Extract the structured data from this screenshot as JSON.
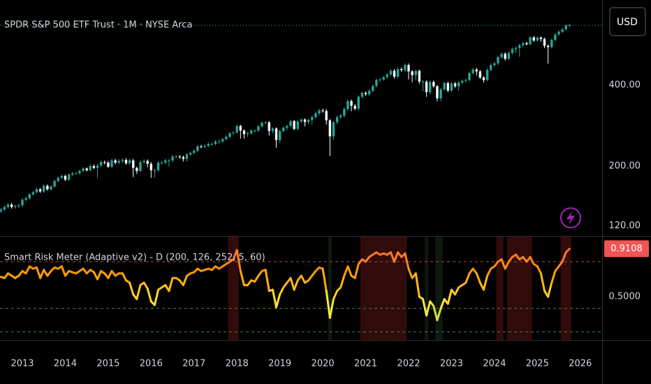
{
  "chart_data": [
    {
      "type": "candlestick",
      "title": "SPDR S&P 500 ETF Trust · 1M · NYSE Arca",
      "currency": "USD",
      "categories": [
        null,
        null,
        null,
        null,
        null,
        null,
        "2013",
        null,
        null,
        null,
        null,
        null,
        null,
        null,
        null,
        null,
        null,
        null,
        "2014",
        null,
        null,
        null,
        null,
        null,
        null,
        null,
        null,
        null,
        null,
        null,
        "2015",
        null,
        null,
        null,
        null,
        null,
        null,
        null,
        null,
        null,
        null,
        null,
        "2016",
        null,
        null,
        null,
        null,
        null,
        null,
        null,
        null,
        null,
        null,
        null,
        "2017",
        null,
        null,
        null,
        null,
        null,
        null,
        null,
        null,
        null,
        null,
        null,
        "2018",
        null,
        null,
        null,
        null,
        null,
        null,
        null,
        null,
        null,
        null,
        null,
        "2019",
        null,
        null,
        null,
        null,
        null,
        null,
        null,
        null,
        null,
        null,
        null,
        "2020",
        null,
        null,
        null,
        null,
        null,
        null,
        null,
        null,
        null,
        null,
        null,
        "2021",
        null,
        null,
        null,
        null,
        null,
        null,
        null,
        null,
        null,
        null,
        null,
        "2022",
        null,
        null,
        null,
        null,
        null,
        null,
        null,
        null,
        null,
        null,
        null,
        "2023",
        null,
        null,
        null,
        null,
        null,
        null,
        null,
        null,
        null,
        null,
        null,
        "2024",
        null,
        null,
        null,
        null,
        null,
        null,
        null,
        null,
        null,
        null,
        null,
        "2025",
        null,
        null,
        null,
        null,
        null,
        null,
        null,
        null,
        null,
        null,
        null,
        "2026"
      ],
      "open": [
        136,
        138,
        141,
        144,
        141,
        142,
        143,
        150,
        152,
        157,
        160,
        164,
        161,
        169,
        164,
        168,
        176,
        181,
        184,
        178,
        186,
        188,
        188,
        192,
        196,
        193,
        200,
        197,
        201,
        207,
        206,
        199,
        210,
        206,
        209,
        211,
        205,
        210,
        197,
        192,
        207,
        209,
        204,
        193,
        193,
        206,
        206,
        210,
        210,
        217,
        217,
        216,
        213,
        221,
        224,
        228,
        237,
        236,
        238,
        242,
        242,
        247,
        247,
        252,
        257,
        265,
        267,
        282,
        271,
        263,
        265,
        271,
        271,
        281,
        290,
        291,
        270,
        276,
        250,
        270,
        278,
        282,
        294,
        275,
        293,
        298,
        292,
        297,
        304,
        314,
        322,
        321,
        296,
        258,
        291,
        304,
        308,
        326,
        349,
        335,
        327,
        362,
        374,
        370,
        381,
        397,
        418,
        420,
        428,
        438,
        452,
        430,
        459,
        455,
        475,
        450,
        436,
        452,
        412,
        412,
        377,
        411,
        396,
        357,
        386,
        407,
        382,
        406,
        396,
        409,
        415,
        418,
        443,
        457,
        450,
        427,
        418,
        456,
        475,
        482,
        508,
        523,
        501,
        527,
        545,
        550,
        563,
        573,
        568,
        602,
        586,
        601,
        594,
        560,
        554,
        589,
        617,
        632,
        645,
        666,
        null,
        null,
        null
      ],
      "high": [
        140,
        143,
        146,
        146,
        144,
        145,
        152,
        154,
        159,
        162,
        166,
        166,
        171,
        171,
        170,
        178,
        183,
        186,
        186,
        188,
        190,
        190,
        194,
        198,
        198,
        203,
        203,
        204,
        210,
        210,
        209,
        213,
        213,
        212,
        214,
        214,
        213,
        213,
        199,
        210,
        212,
        212,
        207,
        195,
        209,
        209,
        213,
        213,
        220,
        220,
        220,
        219,
        224,
        227,
        231,
        240,
        240,
        241,
        245,
        245,
        250,
        250,
        255,
        260,
        268,
        270,
        285,
        285,
        274,
        268,
        274,
        274,
        284,
        293,
        294,
        294,
        279,
        279,
        273,
        281,
        285,
        297,
        297,
        296,
        301,
        301,
        300,
        309,
        319,
        327,
        327,
        326,
        299,
        294,
        309,
        313,
        331,
        354,
        354,
        340,
        367,
        379,
        379,
        386,
        402,
        423,
        425,
        433,
        443,
        459,
        459,
        466,
        466,
        482,
        482,
        455,
        457,
        457,
        417,
        417,
        416,
        416,
        401,
        391,
        412,
        412,
        411,
        411,
        414,
        420,
        423,
        448,
        464,
        464,
        455,
        432,
        463,
        482,
        489,
        515,
        530,
        530,
        534,
        552,
        557,
        570,
        580,
        580,
        609,
        609,
        608,
        608,
        601,
        567,
        596,
        624,
        639,
        652,
        673,
        675,
        null,
        null,
        null
      ],
      "low": [
        134,
        136,
        139,
        139,
        139,
        140,
        141,
        148,
        150,
        155,
        158,
        159,
        159,
        162,
        162,
        166,
        174,
        179,
        176,
        176,
        184,
        186,
        186,
        190,
        191,
        191,
        195,
        181,
        198,
        203,
        197,
        197,
        203,
        203,
        206,
        202,
        202,
        182,
        187,
        190,
        204,
        198,
        181,
        181,
        191,
        203,
        203,
        199,
        207,
        214,
        213,
        208,
        208,
        218,
        221,
        225,
        233,
        233,
        235,
        239,
        239,
        242,
        244,
        249,
        254,
        262,
        264,
        253,
        253,
        257,
        262,
        268,
        268,
        278,
        287,
        260,
        265,
        234,
        244,
        267,
        272,
        279,
        272,
        272,
        290,
        281,
        287,
        285,
        301,
        309,
        316,
        285,
        218,
        250,
        286,
        299,
        303,
        321,
        320,
        322,
        322,
        357,
        365,
        365,
        376,
        392,
        413,
        415,
        423,
        433,
        423,
        423,
        448,
        448,
        420,
        410,
        416,
        404,
        380,
        362,
        370,
        391,
        348,
        348,
        381,
        377,
        377,
        391,
        380,
        404,
        410,
        413,
        438,
        435,
        422,
        409,
        413,
        451,
        468,
        475,
        501,
        493,
        494,
        520,
        527,
        510,
        556,
        561,
        561,
        579,
        579,
        580,
        549,
        481,
        547,
        582,
        610,
        625,
        638,
        659,
        null,
        null,
        null
      ],
      "close": [
        138,
        141,
        144,
        141,
        142,
        143,
        150,
        152,
        157,
        160,
        164,
        161,
        169,
        164,
        168,
        176,
        181,
        184,
        178,
        186,
        188,
        188,
        192,
        196,
        193,
        200,
        197,
        201,
        207,
        206,
        199,
        210,
        206,
        209,
        211,
        205,
        210,
        197,
        192,
        207,
        209,
        204,
        193,
        193,
        206,
        206,
        210,
        210,
        217,
        217,
        216,
        213,
        221,
        224,
        228,
        237,
        236,
        238,
        242,
        242,
        247,
        247,
        252,
        257,
        265,
        267,
        282,
        271,
        263,
        265,
        271,
        271,
        281,
        290,
        291,
        270,
        276,
        250,
        270,
        278,
        282,
        294,
        275,
        293,
        298,
        292,
        297,
        304,
        314,
        322,
        321,
        296,
        258,
        291,
        304,
        308,
        326,
        349,
        335,
        327,
        362,
        374,
        370,
        381,
        397,
        418,
        420,
        428,
        438,
        452,
        430,
        459,
        455,
        475,
        450,
        436,
        452,
        412,
        412,
        377,
        411,
        396,
        357,
        386,
        407,
        382,
        406,
        396,
        409,
        415,
        418,
        443,
        457,
        450,
        427,
        418,
        456,
        475,
        482,
        508,
        523,
        501,
        527,
        545,
        550,
        563,
        573,
        568,
        602,
        586,
        601,
        594,
        560,
        554,
        589,
        617,
        632,
        645,
        666,
        668,
        null,
        null,
        null
      ],
      "up_color": "#26a69a",
      "down_color": "#ffffff",
      "log": true,
      "ylim": [
        110,
        829
      ],
      "yticks": [
        {
          "value": 120,
          "label": "120.00"
        },
        {
          "value": 200,
          "label": "200.00"
        },
        {
          "value": 400,
          "label": "400.00"
        }
      ]
    },
    {
      "type": "line",
      "title": "Smart Risk Meter (Adaptive v2) - D (200, 126, 252, 5, 60)",
      "values": [
        0.67,
        0.66,
        0.7,
        0.68,
        0.66,
        0.68,
        0.72,
        0.7,
        0.76,
        0.74,
        0.75,
        0.66,
        0.73,
        0.68,
        0.72,
        0.75,
        0.74,
        0.76,
        0.68,
        0.72,
        0.71,
        0.7,
        0.72,
        0.74,
        0.7,
        0.73,
        0.71,
        0.65,
        0.72,
        0.7,
        0.66,
        0.72,
        0.68,
        0.7,
        0.7,
        0.64,
        0.62,
        0.52,
        0.48,
        0.6,
        0.62,
        0.57,
        0.46,
        0.43,
        0.56,
        0.58,
        0.6,
        0.55,
        0.66,
        0.66,
        0.64,
        0.6,
        0.68,
        0.7,
        0.71,
        0.74,
        0.72,
        0.73,
        0.74,
        0.73,
        0.76,
        0.74,
        0.76,
        0.78,
        0.8,
        0.82,
        0.9,
        0.72,
        0.6,
        0.6,
        0.64,
        0.63,
        0.68,
        0.72,
        0.73,
        0.55,
        0.56,
        0.41,
        0.52,
        0.58,
        0.62,
        0.66,
        0.56,
        0.64,
        0.68,
        0.62,
        0.64,
        0.68,
        0.72,
        0.75,
        0.74,
        0.55,
        0.32,
        0.48,
        0.55,
        0.58,
        0.68,
        0.76,
        0.68,
        0.66,
        0.78,
        0.82,
        0.8,
        0.84,
        0.86,
        0.88,
        0.86,
        0.87,
        0.86,
        0.88,
        0.8,
        0.88,
        0.84,
        0.87,
        0.74,
        0.66,
        0.7,
        0.5,
        0.48,
        0.34,
        0.46,
        0.42,
        0.3,
        0.4,
        0.48,
        0.44,
        0.56,
        0.52,
        0.58,
        0.6,
        0.62,
        0.7,
        0.74,
        0.7,
        0.62,
        0.56,
        0.68,
        0.74,
        0.76,
        0.8,
        0.82,
        0.74,
        0.8,
        0.84,
        0.86,
        0.82,
        0.84,
        0.8,
        0.84,
        0.78,
        0.76,
        0.7,
        0.55,
        0.5,
        0.62,
        0.72,
        0.76,
        0.8,
        0.88,
        0.9108
      ],
      "colors": [
        "#4caf50",
        "#ffeb3b",
        "#ff9800",
        "#f05454"
      ],
      "levels": [
        0.8,
        0.4,
        0.2
      ],
      "level_colors": [
        "#b2474b",
        "#3f8a4a",
        "#3f8a4a"
      ],
      "band_colors": [
        "rgba(178,40,40,0.28)",
        "rgba(60,120,60,0.22)"
      ],
      "ylim": [
        0.13,
        1.02
      ],
      "yticks": [
        {
          "value": 0.5,
          "label": "0.5000"
        }
      ],
      "current": {
        "value": 0.9108,
        "label": "0.9108"
      },
      "current_color": "#f05454"
    }
  ]
}
